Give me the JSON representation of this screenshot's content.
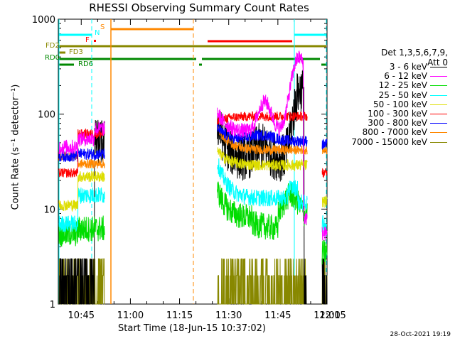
{
  "chart_data": {
    "type": "line",
    "title": "RHESSI Observing Summary Count Rates",
    "xlabel": "Start Time (18-Jun-15 10:37:02)",
    "ylabel": "Count Rate (s⁻¹ detector⁻¹)",
    "yscale": "log",
    "ylim": [
      1,
      1000
    ],
    "xlim_minutes": [
      38,
      120
    ],
    "x_ticks": [
      "10:45",
      "11:00",
      "11:15",
      "11:30",
      "11:45",
      "12:00",
      "12:15"
    ],
    "y_ticks": [
      "1",
      "10",
      "100",
      "1000"
    ],
    "legend_header": [
      "Det 1,3,5,6,7,9,",
      "Att 0"
    ],
    "series": [
      {
        "name": "3 - 6 keV",
        "color": "#000000"
      },
      {
        "name": "6 - 12 keV",
        "color": "#ff00ff"
      },
      {
        "name": "12 - 25 keV",
        "color": "#00dd00"
      },
      {
        "name": "25 - 50 keV",
        "color": "#00ffff"
      },
      {
        "name": "50 - 100 keV",
        "color": "#dddd00"
      },
      {
        "name": "100 - 300 keV",
        "color": "#ff0000"
      },
      {
        "name": "300 - 800 keV",
        "color": "#0000ff"
      },
      {
        "name": "800 - 7000 keV",
        "color": "#ff8800"
      },
      {
        "name": "7000 - 15000 keV",
        "color": "#888800"
      }
    ],
    "flags": [
      {
        "label": "S",
        "color": "#ff8800"
      },
      {
        "label": "N",
        "color": "#00ffff"
      },
      {
        "label": "F",
        "color": "#ff0000"
      },
      {
        "label": "FD2",
        "color": "#888800"
      },
      {
        "label": "FD3",
        "color": "#888800"
      },
      {
        "label": "RD0",
        "color": "#008800"
      },
      {
        "label": "RD6",
        "color": "#008800"
      }
    ]
  },
  "timestamp": "28-Oct-2021 19:19"
}
